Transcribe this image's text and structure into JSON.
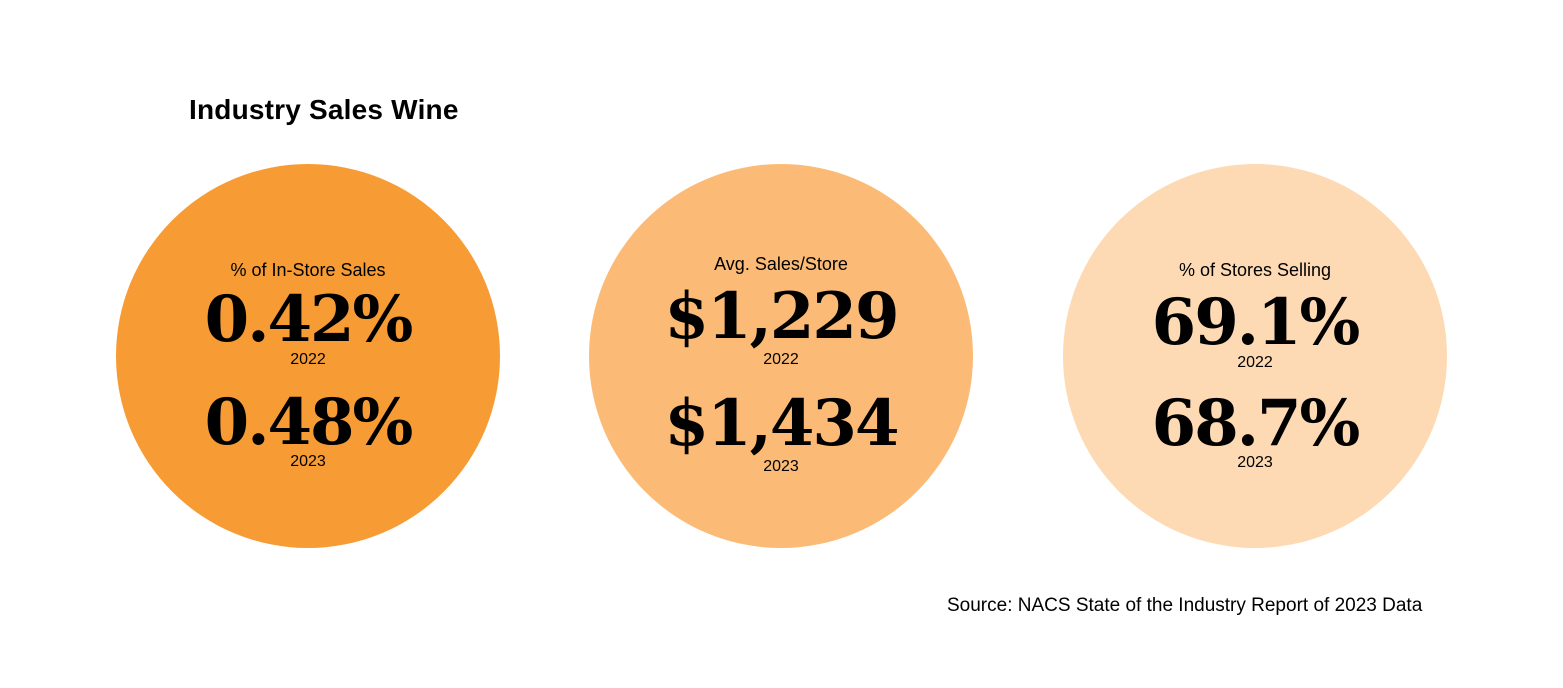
{
  "title": "Industry Sales Wine",
  "colors": {
    "circle1": "#F79C34",
    "circle2": "#FBBB76",
    "circle3": "#FDDAB3"
  },
  "stats": [
    {
      "label": "% of In-Store Sales",
      "value_2022": "0.42%",
      "year_2022": "2022",
      "value_2023": "0.48%",
      "year_2023": "2023"
    },
    {
      "label": "Avg. Sales/Store",
      "value_2022": "$1,229",
      "year_2022": "2022",
      "value_2023": "$1,434",
      "year_2023": "2023"
    },
    {
      "label": "% of Stores Selling",
      "value_2022": "69.1%",
      "year_2022": "2022",
      "value_2023": "68.7%",
      "year_2023": "2023"
    }
  ],
  "source": "Source: NACS State of the Industry Report of 2023 Data"
}
